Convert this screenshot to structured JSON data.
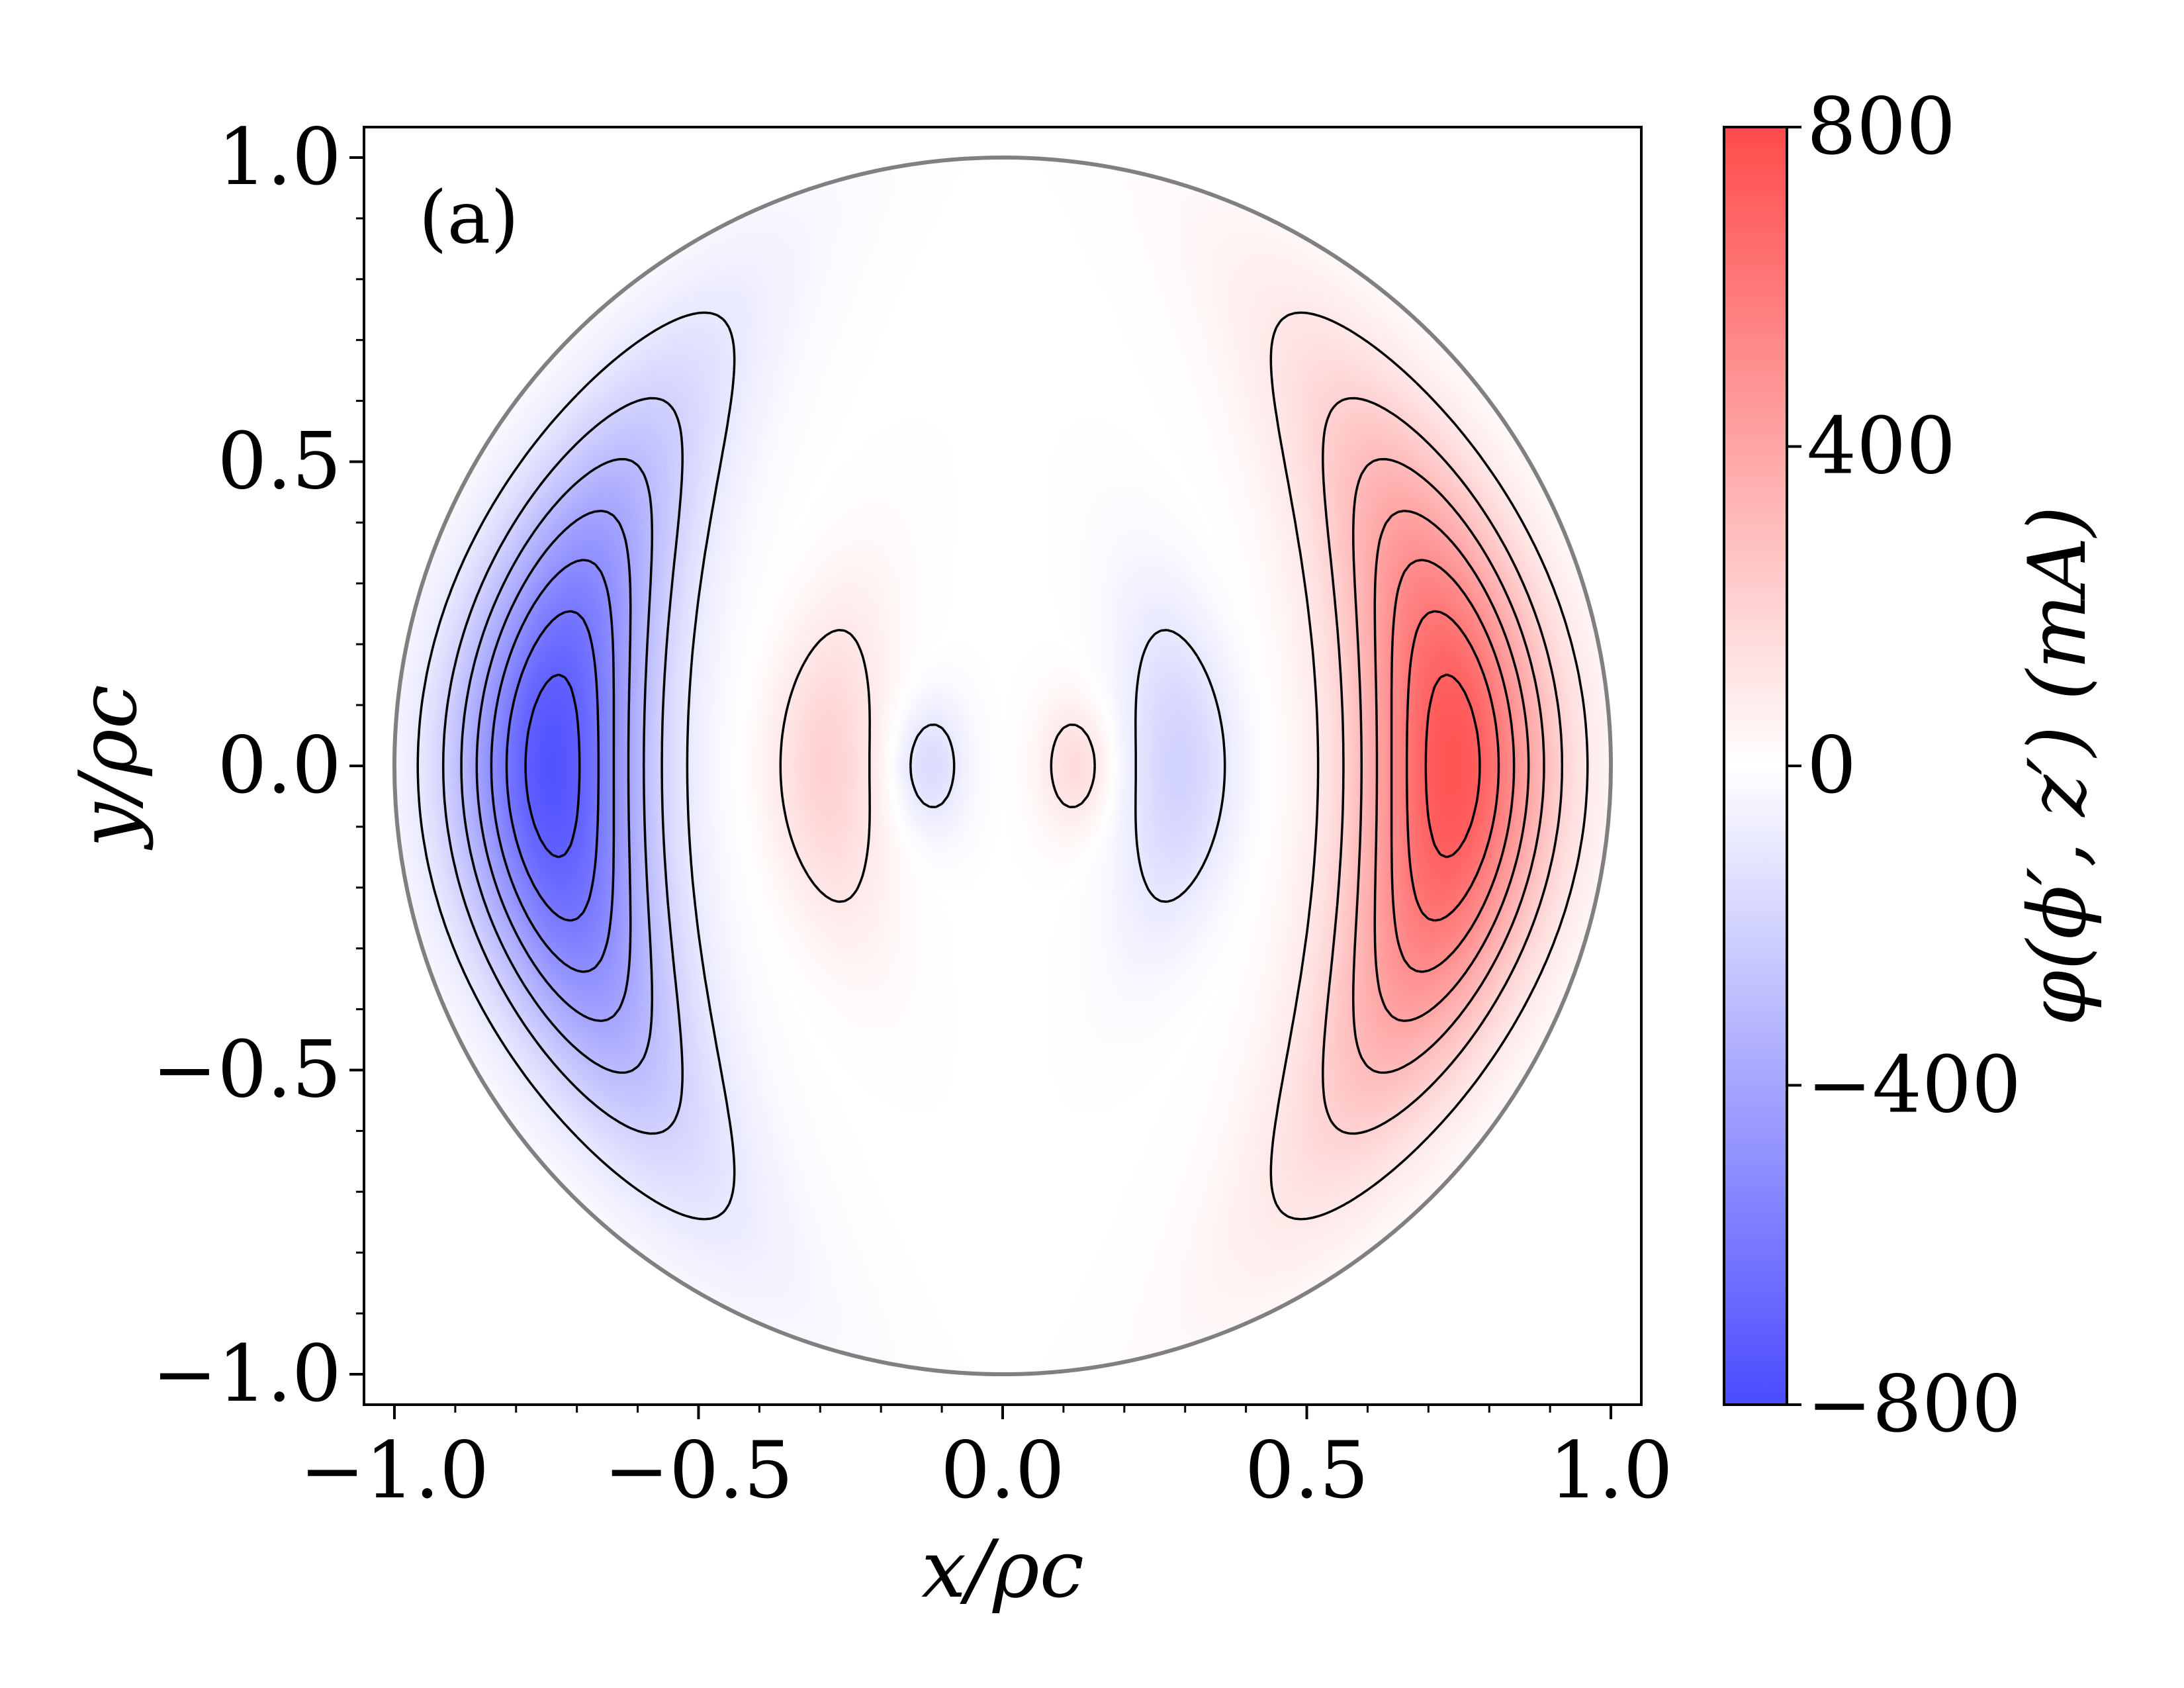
{
  "chart_data": {
    "type": "heatmap",
    "panel_label": "(a)",
    "xlabel": "x/ρc",
    "ylabel": "y/ρc",
    "colorbar_label": "φ(ϕ′, z′) (mA)",
    "xlim": [
      -1.05,
      1.05
    ],
    "ylim": [
      -1.05,
      1.05
    ],
    "xticks": [
      -1.0,
      -0.5,
      0.0,
      0.5,
      1.0
    ],
    "yticks": [
      -1.0,
      -0.5,
      0.0,
      0.5,
      1.0
    ],
    "xtick_labels": [
      "−1.0",
      "−0.5",
      "0.0",
      "0.5",
      "1.0"
    ],
    "ytick_labels": [
      "−1.0",
      "−0.5",
      "0.0",
      "0.5",
      "1.0"
    ],
    "colorbar": {
      "range": [
        -800,
        800
      ],
      "ticks": [
        -800,
        -400,
        0,
        400,
        800
      ],
      "tick_labels": [
        "−800",
        "−400",
        "0",
        "400",
        "800"
      ],
      "colormap": "bwr",
      "low_color": "#4b4bff",
      "mid_color": "#ffffff",
      "high_color": "#ff4b4b"
    },
    "domain": "unit disk (x/ρc)² + (y/ρc)² ≤ 1",
    "field": {
      "extrema": [
        {
          "x": 0.74,
          "y": 0.0,
          "value": 760
        },
        {
          "x": -0.74,
          "y": 0.0,
          "value": -760
        },
        {
          "x": -0.29,
          "y": 0.0,
          "value": 200
        },
        {
          "x": 0.29,
          "y": 0.0,
          "value": -200
        },
        {
          "x": 0.12,
          "y": 0.0,
          "value": 160
        },
        {
          "x": -0.12,
          "y": 0.0,
          "value": -160
        }
      ]
    },
    "contours": {
      "positive_style": "solid",
      "negative_style": "dashed",
      "color": "#000000"
    },
    "boundary_color": "#808080",
    "grid": false
  }
}
